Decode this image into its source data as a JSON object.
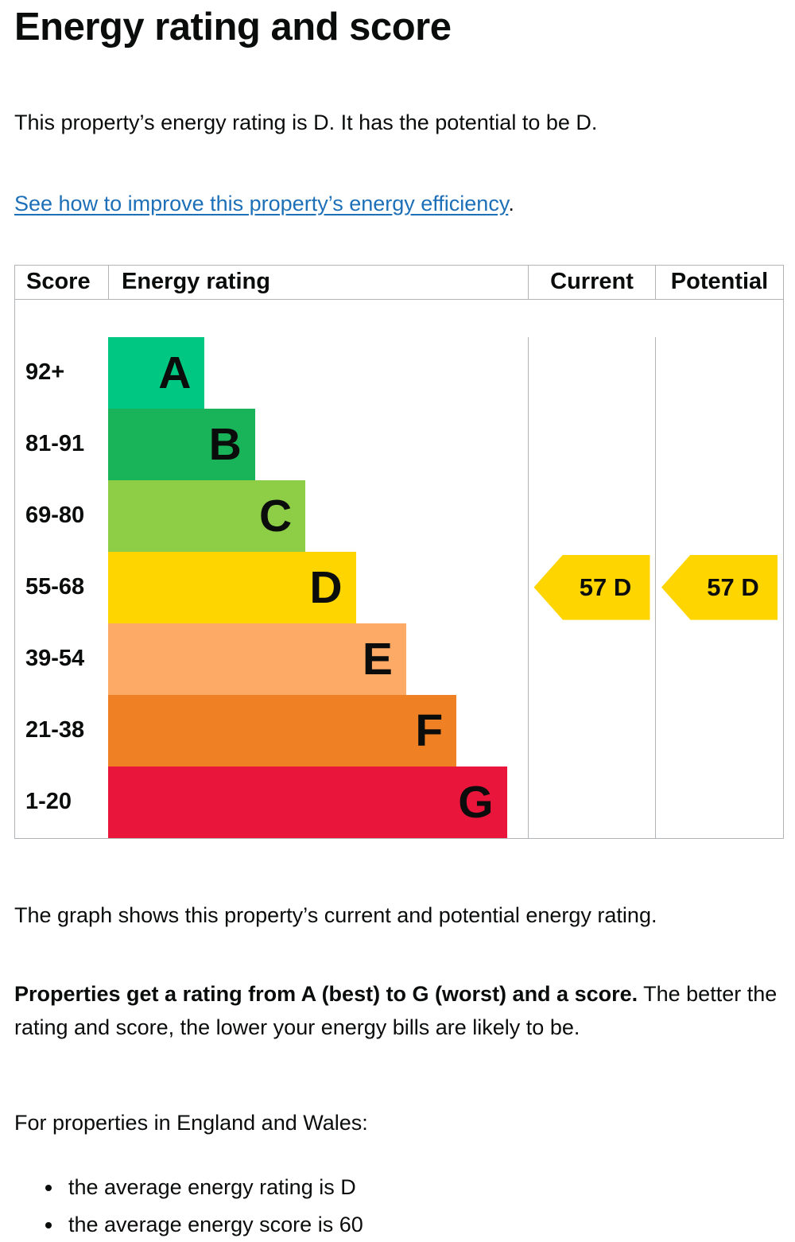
{
  "page": {
    "title": "Energy rating and score",
    "intro": "This property’s energy rating is D. It has the potential to be D.",
    "improve_link": "See how to improve this property’s energy efficiency",
    "improve_link_suffix": ".",
    "graph_caption": "The graph shows this property’s current and potential energy rating.",
    "explain_bold": "Properties get a rating from A (best) to G (worst) and a score.",
    "explain_rest": " The better the rating and score, the lower your energy bills are likely to be.",
    "regions_intro": "For properties in England and Wales:",
    "bullets": [
      "the average energy rating is D",
      "the average energy score is 60"
    ]
  },
  "chart_data": {
    "type": "bar",
    "subtype": "epc-energy-rating",
    "columns": [
      "Score",
      "Energy rating",
      "Current",
      "Potential"
    ],
    "bands": [
      {
        "letter": "A",
        "score_range": "92+",
        "color": "#00c781",
        "score_cell_color": "#6fc89e",
        "bar_width_pct": 23
      },
      {
        "letter": "B",
        "score_range": "81-91",
        "color": "#19b459",
        "score_cell_color": "#8ed2a2",
        "bar_width_pct": 35
      },
      {
        "letter": "C",
        "score_range": "69-80",
        "color": "#8dce46",
        "score_cell_color": "#afdc8a",
        "bar_width_pct": 47
      },
      {
        "letter": "D",
        "score_range": "55-68",
        "color": "#ffd500",
        "score_cell_color": "#ffe972",
        "bar_width_pct": 59
      },
      {
        "letter": "E",
        "score_range": "39-54",
        "color": "#fcaa65",
        "score_cell_color": "#fdd2a7",
        "bar_width_pct": 71
      },
      {
        "letter": "F",
        "score_range": "21-38",
        "color": "#ef8023",
        "score_cell_color": "#f5b377",
        "bar_width_pct": 83
      },
      {
        "letter": "G",
        "score_range": "1-20",
        "color": "#e9153b",
        "score_cell_color": "#f27d92",
        "bar_width_pct": 95
      }
    ],
    "current": {
      "score": 57,
      "band": "D",
      "label": "57 D",
      "arrow_color": "#ffd500",
      "row": "D"
    },
    "potential": {
      "score": 57,
      "band": "D",
      "label": "57 D",
      "arrow_color": "#ffd500",
      "row": "D"
    }
  },
  "colors": {
    "text": "#0b0c0c",
    "link": "#1d70b8",
    "table_border": "#b1b4b6"
  }
}
